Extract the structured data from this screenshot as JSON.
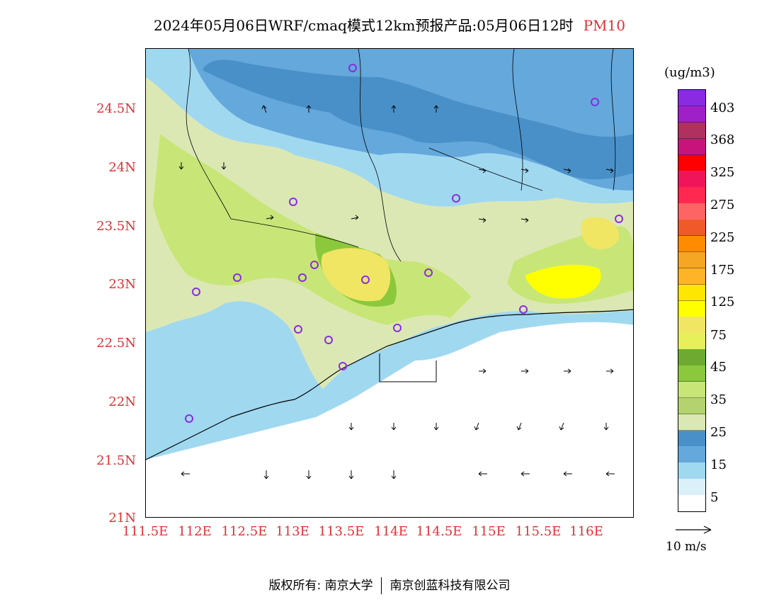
{
  "header": {
    "title": "2024年05月06日WRF/cmaq模式12km预报产品:05月06日12时",
    "pollutant": "PM10"
  },
  "map": {
    "y_labels": [
      "24.5N",
      "24N",
      "23.5N",
      "23N",
      "22.5N",
      "22N",
      "21.5N",
      "21N"
    ],
    "x_labels": [
      "111.5E",
      "112E",
      "112.5E",
      "113E",
      "113.5E",
      "114E",
      "114.5E",
      "115E",
      "115.5E",
      "116E"
    ]
  },
  "legend": {
    "unit": "(ug/m3)",
    "levels": [
      "403",
      "368",
      "325",
      "275",
      "225",
      "175",
      "125",
      "75",
      "45",
      "35",
      "25",
      "15",
      "5"
    ],
    "colors_top_to_bottom": [
      "#8a2be2",
      "#a020c8",
      "#b03060",
      "#c8147a",
      "#ff0000",
      "#f0145a",
      "#ff2850",
      "#ff6464",
      "#f05a28",
      "#ff8c00",
      "#f5a623",
      "#ffb428",
      "#ffe600",
      "#ffff00",
      "#f0e664",
      "#e6f05a",
      "#6eaa32",
      "#8cc83c",
      "#c8e678",
      "#b4d26e",
      "#dce8b4",
      "#4a90c8",
      "#64a8dc",
      "#a0d8f0",
      "#dcf0fa",
      "#ffffff"
    ]
  },
  "wind_reference": {
    "label": "10 m/s"
  },
  "footer": {
    "copyright_label": "版权所有:",
    "org1": "南京大学",
    "org2": "南京创蓝科技有限公司"
  }
}
